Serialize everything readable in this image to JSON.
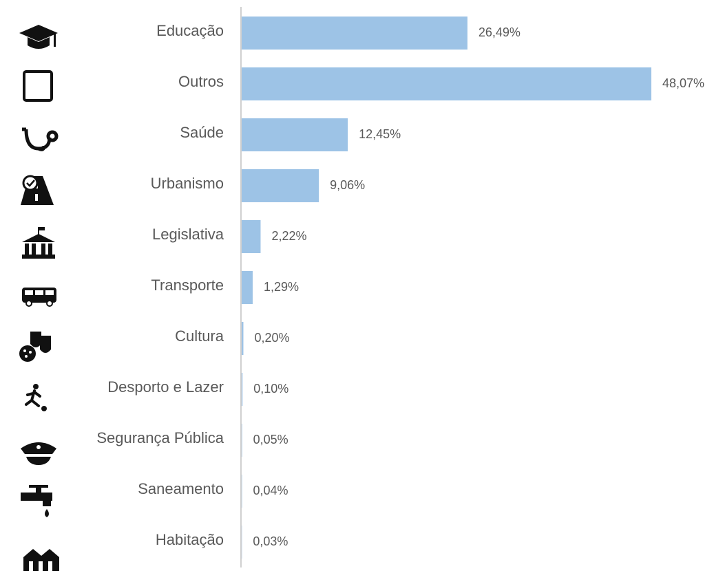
{
  "chart_data": {
    "type": "hbar",
    "categories": [
      "Educação",
      "Outros",
      "Saúde",
      "Urbanismo",
      "Legislativa",
      "Transporte",
      "Cultura",
      "Desporto e Lazer",
      "Segurança Pública",
      "Saneamento",
      "Habitação"
    ],
    "values": [
      26.49,
      48.07,
      12.45,
      9.06,
      2.22,
      1.29,
      0.2,
      0.1,
      0.05,
      0.04,
      0.03
    ],
    "value_labels": [
      "26,49%",
      "48,07%",
      "12,45%",
      "9,06%",
      "2,22%",
      "1,29%",
      "0,20%",
      "0,10%",
      "0,05%",
      "0,04%",
      "0,03%"
    ],
    "color": "#9dc3e6"
  }
}
